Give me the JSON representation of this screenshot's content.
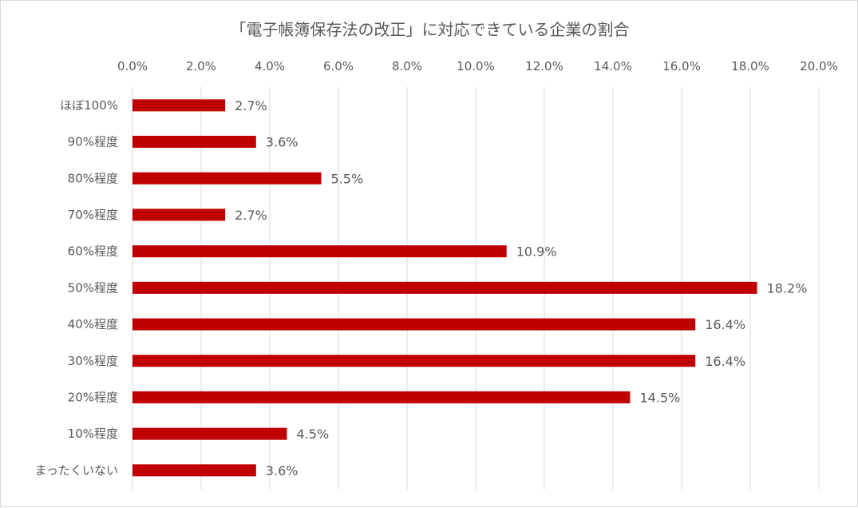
{
  "chart_data": {
    "type": "bar",
    "orientation": "horizontal",
    "title": "「電子帳簿保存法の改正」に対応できている企業の割合",
    "categories": [
      "ほぼ100%",
      "90%程度",
      "80%程度",
      "70%程度",
      "60%程度",
      "50%程度",
      "40%程度",
      "30%程度",
      "20%程度",
      "10%程度",
      "まったくいない"
    ],
    "values": [
      2.7,
      3.6,
      5.5,
      2.7,
      10.9,
      18.2,
      16.4,
      16.4,
      14.5,
      4.5,
      3.6
    ],
    "data_labels": [
      "2.7%",
      "3.6%",
      "5.5%",
      "2.7%",
      "10.9%",
      "18.2%",
      "16.4%",
      "16.4%",
      "14.5%",
      "4.5%",
      "3.6%"
    ],
    "x_ticks": [
      "0.0%",
      "2.0%",
      "4.0%",
      "6.0%",
      "8.0%",
      "10.0%",
      "12.0%",
      "14.0%",
      "16.0%",
      "18.0%",
      "20.0%"
    ],
    "xlim": [
      0,
      20
    ],
    "x_axis_position": "top",
    "grid": true,
    "legend": "none",
    "bar_color": "#c00000",
    "grid_color": "#d9d9d9",
    "text_color": "#595959"
  }
}
